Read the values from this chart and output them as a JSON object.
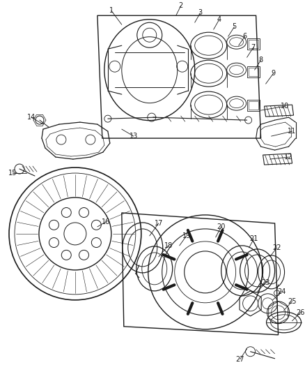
{
  "bg_color": "#ffffff",
  "line_color": "#1a1a1a",
  "text_color": "#1a1a1a",
  "fig_width": 4.38,
  "fig_height": 5.33,
  "dpi": 100
}
